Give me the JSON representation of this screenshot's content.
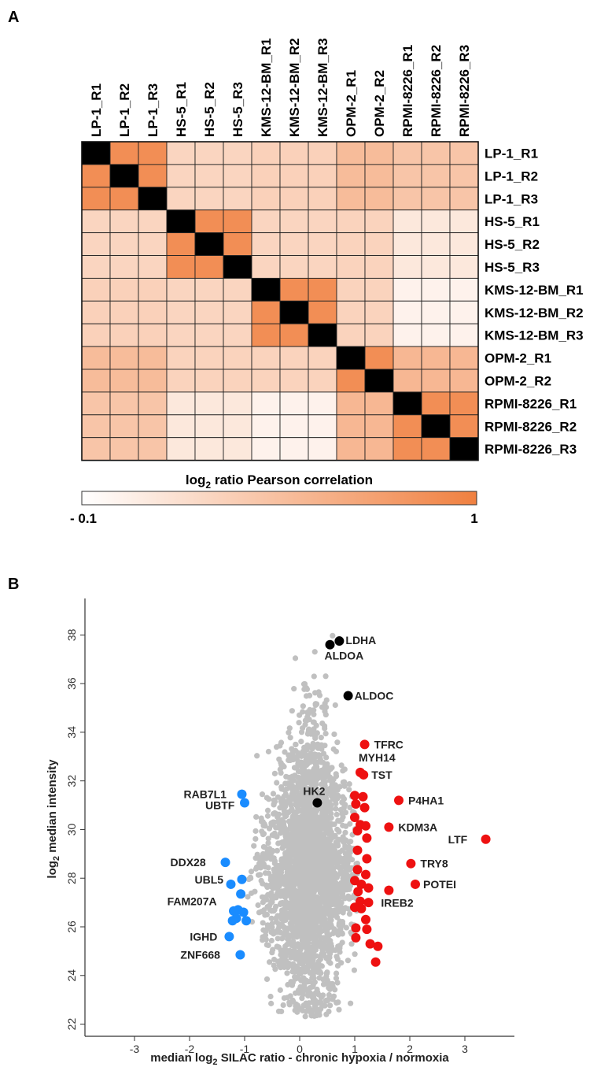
{
  "panel_a": {
    "letter": "A",
    "colorbar": {
      "title_main": "log",
      "title_sub": "2",
      "title_rest": " ratio Pearson correlation",
      "min_label": "- 0.1",
      "max_label": "1",
      "low_color": "#ffffff",
      "high_color": "#f08040"
    }
  },
  "panel_b": {
    "letter": "B"
  },
  "chart_data": [
    {
      "type": "heatmap",
      "title": "",
      "colorbar_label": "log2 ratio Pearson correlation",
      "colorbar_range": [
        -0.1,
        1
      ],
      "diagonal_color": "#000000",
      "labels": [
        "LP-1_R1",
        "LP-1_R2",
        "LP-1_R3",
        "HS-5_R1",
        "HS-5_R2",
        "HS-5_R3",
        "KMS-12-BM_R1",
        "KMS-12-BM_R2",
        "KMS-12-BM_R3",
        "OPM-2_R1",
        "OPM-2_R2",
        "RPMI-8226_R1",
        "RPMI-8226_R2",
        "RPMI-8226_R3"
      ],
      "groups": [
        {
          "name": "LP-1",
          "size": 3
        },
        {
          "name": "HS-5",
          "size": 3
        },
        {
          "name": "KMS-12-BM",
          "size": 3
        },
        {
          "name": "OPM-2",
          "size": 2
        },
        {
          "name": "RPMI-8226",
          "size": 3
        }
      ],
      "within_group_correlation": 0.88,
      "group_correlations": [
        [
          0.88,
          0.26,
          0.3,
          0.48,
          0.4
        ],
        [
          0.26,
          0.88,
          0.26,
          0.28,
          0.1
        ],
        [
          0.3,
          0.26,
          0.88,
          0.28,
          0.01
        ],
        [
          0.48,
          0.28,
          0.28,
          0.88,
          0.52
        ],
        [
          0.4,
          0.1,
          0.01,
          0.52,
          0.88
        ]
      ]
    },
    {
      "type": "scatter",
      "title": "",
      "xlabel": "median log2 SILAC ratio - chronic hypoxia / normoxia",
      "ylabel": "log2 median intensity",
      "xlim": [
        -3.9,
        3.9
      ],
      "ylim": [
        21.5,
        39.5
      ],
      "xticks": [
        -3,
        -2,
        -1,
        0,
        1,
        2,
        3
      ],
      "yticks": [
        22,
        24,
        26,
        28,
        30,
        32,
        34,
        36,
        38
      ],
      "background_cloud": {
        "color": "#c0c0c0",
        "center_x": 0.15,
        "spread_note": "dense grey cloud of all quantified proteins"
      },
      "series": [
        {
          "color": "#000000",
          "points": [
            {
              "x": 0.72,
              "y": 37.75,
              "label": "LDHA"
            },
            {
              "x": 0.55,
              "y": 37.6,
              "label": "ALDOA"
            },
            {
              "x": 0.88,
              "y": 35.5,
              "label": "ALDOC"
            },
            {
              "x": 0.32,
              "y": 31.1,
              "label": "HK2"
            }
          ]
        },
        {
          "color": "#ee1111",
          "points": [
            {
              "x": 1.18,
              "y": 33.5,
              "label": "TFRC"
            },
            {
              "x": 1.1,
              "y": 32.35,
              "label": "MYH14"
            },
            {
              "x": 1.16,
              "y": 32.25,
              "label": "TST"
            },
            {
              "x": 1.8,
              "y": 31.2,
              "label": "P4HA1"
            },
            {
              "x": 1.62,
              "y": 30.1,
              "label": "KDM3A"
            },
            {
              "x": 3.38,
              "y": 29.6,
              "label": "LTF"
            },
            {
              "x": 2.02,
              "y": 28.6,
              "label": "TRY8"
            },
            {
              "x": 2.1,
              "y": 27.75,
              "label": "POTEI"
            },
            {
              "x": 1.62,
              "y": 27.5,
              "label": "IREB2"
            },
            {
              "x": 1.0,
              "y": 31.4
            },
            {
              "x": 1.15,
              "y": 31.35
            },
            {
              "x": 1.02,
              "y": 31.05
            },
            {
              "x": 1.18,
              "y": 30.9
            },
            {
              "x": 1.0,
              "y": 30.5
            },
            {
              "x": 1.1,
              "y": 30.2
            },
            {
              "x": 1.2,
              "y": 30.15
            },
            {
              "x": 1.05,
              "y": 29.95
            },
            {
              "x": 1.22,
              "y": 29.65
            },
            {
              "x": 1.05,
              "y": 29.15
            },
            {
              "x": 1.22,
              "y": 28.8
            },
            {
              "x": 1.05,
              "y": 28.35
            },
            {
              "x": 1.2,
              "y": 28.15
            },
            {
              "x": 1.0,
              "y": 27.9
            },
            {
              "x": 1.12,
              "y": 27.75
            },
            {
              "x": 1.25,
              "y": 27.6
            },
            {
              "x": 1.06,
              "y": 27.45
            },
            {
              "x": 1.1,
              "y": 27.05
            },
            {
              "x": 1.25,
              "y": 27.0
            },
            {
              "x": 1.0,
              "y": 26.8
            },
            {
              "x": 1.12,
              "y": 26.75
            },
            {
              "x": 1.2,
              "y": 26.3
            },
            {
              "x": 1.02,
              "y": 25.95
            },
            {
              "x": 1.22,
              "y": 25.9
            },
            {
              "x": 1.02,
              "y": 25.55
            },
            {
              "x": 1.28,
              "y": 25.3
            },
            {
              "x": 1.42,
              "y": 25.2
            },
            {
              "x": 1.38,
              "y": 24.55
            }
          ]
        },
        {
          "color": "#1a8cff",
          "points": [
            {
              "x": -1.05,
              "y": 31.45,
              "label": "RAB7L1"
            },
            {
              "x": -1.0,
              "y": 31.1,
              "label": "UBTF"
            },
            {
              "x": -1.35,
              "y": 28.65,
              "label": "DDX28"
            },
            {
              "x": -1.05,
              "y": 27.95,
              "label": "UBL5"
            },
            {
              "x": -1.25,
              "y": 27.75
            },
            {
              "x": -1.07,
              "y": 27.35
            },
            {
              "x": -1.12,
              "y": 26.7,
              "label": "FAM207A"
            },
            {
              "x": -1.2,
              "y": 26.65
            },
            {
              "x": -1.02,
              "y": 26.6
            },
            {
              "x": -1.15,
              "y": 26.35
            },
            {
              "x": -1.22,
              "y": 26.25
            },
            {
              "x": -0.97,
              "y": 26.25
            },
            {
              "x": -1.28,
              "y": 25.6,
              "label": "IGHD"
            },
            {
              "x": -1.08,
              "y": 24.85,
              "label": "ZNF668"
            }
          ]
        }
      ]
    }
  ]
}
